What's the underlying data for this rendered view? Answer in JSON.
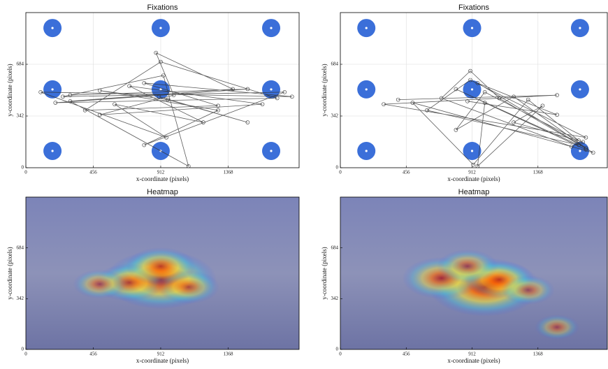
{
  "chart_data": [
    {
      "type": "scanpath",
      "title": "Fixations",
      "xlabel": "x-coordinate (pixels)",
      "ylabel": "y-coordinate (pixels)",
      "xlim": [
        0,
        1848
      ],
      "ylim": [
        0,
        1026
      ],
      "xticks": [
        0,
        456,
        912,
        1368
      ],
      "yticks": [
        0,
        342,
        684
      ],
      "grid": true,
      "targets": {
        "color": "#3b6fd9",
        "x": [
          180,
          912,
          1659,
          180,
          912,
          1659,
          180,
          912,
          1659
        ],
        "y": [
          924,
          924,
          924,
          518,
          518,
          518,
          111,
          111,
          111
        ]
      },
      "series": [
        {
          "color": "#333333",
          "x": [
            300,
            1500,
            200,
            1700,
            912,
            400,
            1300,
            800,
            1800,
            100,
            950,
            600,
            1200,
            700,
            1600,
            500,
            1000,
            880,
            1400,
            300,
            1100,
            930,
            250,
            1750,
            800,
            1300,
            500,
            960,
            1500,
            900
          ],
          "y": [
            480,
            520,
            430,
            460,
            700,
            380,
            410,
            560,
            470,
            500,
            200,
            420,
            300,
            540,
            420,
            350,
            480,
            760,
            520,
            440,
            10,
            610,
            470,
            500,
            150,
            380,
            510,
            450,
            300,
            470
          ]
        }
      ]
    },
    {
      "type": "scanpath",
      "title": "Fixations",
      "xlabel": "x-coordinate (pixels)",
      "ylabel": "y-coordinate (pixels)",
      "xlim": [
        0,
        1848
      ],
      "ylim": [
        0,
        1026
      ],
      "xticks": [
        0,
        456,
        912,
        1368
      ],
      "yticks": [
        0,
        342,
        684
      ],
      "grid": true,
      "targets": {
        "color": "#3b6fd9",
        "x": [
          180,
          912,
          1659,
          180,
          912,
          1659,
          180,
          912,
          1659
        ],
        "y": [
          924,
          924,
          924,
          518,
          518,
          518,
          111,
          111,
          111
        ]
      },
      "series": [
        {
          "color": "#333333",
          "x": [
            400,
            1500,
            300,
            1700,
            900,
            600,
            1650,
            800,
            1700,
            1000,
            950,
            1400,
            1200,
            1680,
            1600,
            700,
            900,
            1100,
            1750,
            500,
            920,
            1300,
            1650,
            1000,
            800,
            1200,
            1700,
            950,
            1500,
            880
          ],
          "y": [
            450,
            480,
            420,
            200,
            580,
            380,
            150,
            520,
            120,
            430,
            10,
            410,
            300,
            170,
            140,
            460,
            640,
            460,
            100,
            430,
            20,
            450,
            180,
            500,
            250,
            470,
            130,
            560,
            350,
            440
          ]
        }
      ]
    },
    {
      "type": "heatmap",
      "title": "Heatmap",
      "xlabel": "x-coordinate (pixels)",
      "ylabel": "y-coordinate (pixels)",
      "xlim": [
        0,
        1848
      ],
      "ylim": [
        0,
        1026
      ],
      "xticks": [
        0,
        456,
        912,
        1368
      ],
      "yticks": [
        0,
        342,
        684
      ],
      "grid": false,
      "x": [
        912,
        700,
        1100,
        912,
        500
      ],
      "y": [
        470,
        450,
        420,
        560,
        440
      ],
      "values": [
        1,
        0.5,
        0.4,
        0.5,
        0.3
      ]
    },
    {
      "type": "heatmap",
      "title": "Heatmap",
      "xlabel": "x-coordinate (pixels)",
      "ylabel": "y-coordinate (pixels)",
      "xlim": [
        0,
        1848
      ],
      "ylim": [
        0,
        1026
      ],
      "xticks": [
        0,
        456,
        912,
        1368
      ],
      "yticks": [
        0,
        342,
        684
      ],
      "grid": false,
      "x": [
        1000,
        700,
        1100,
        1300,
        880,
        1500
      ],
      "y": [
        420,
        480,
        470,
        400,
        560,
        150
      ],
      "values": [
        1,
        0.6,
        0.5,
        0.3,
        0.4,
        0.2
      ]
    }
  ]
}
